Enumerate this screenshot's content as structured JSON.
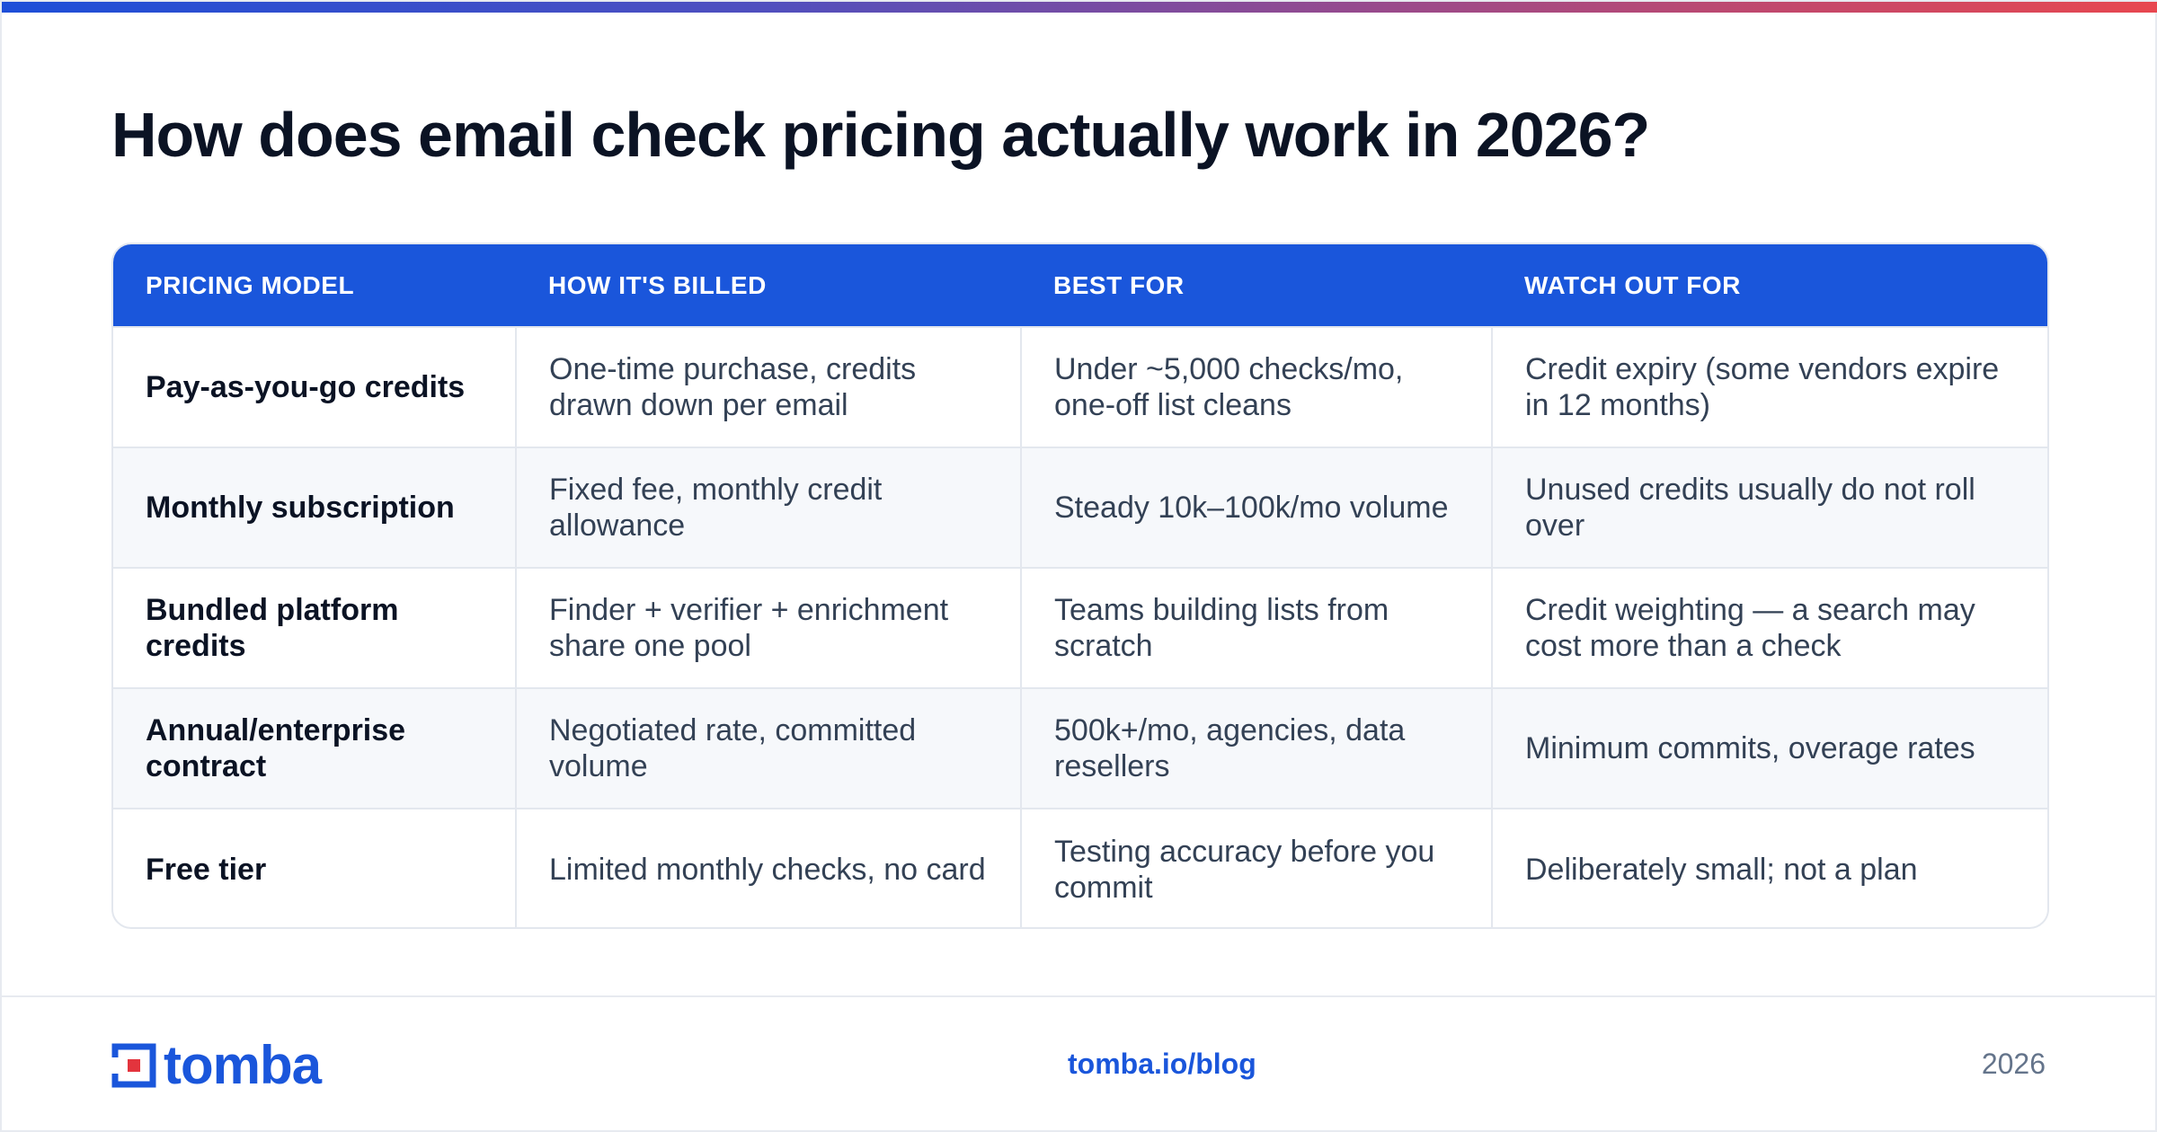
{
  "title": "How does email check pricing actually work in 2026?",
  "table": {
    "headers": [
      "PRICING MODEL",
      "HOW IT'S BILLED",
      "BEST FOR",
      "WATCH OUT FOR"
    ],
    "rows": [
      [
        "Pay-as-you-go credits",
        "One-time purchase, credits drawn down per email",
        "Under ~5,000 checks/mo, one-off list cleans",
        "Credit expiry (some vendors expire in 12 months)"
      ],
      [
        "Monthly subscription",
        "Fixed fee, monthly credit allowance",
        "Steady 10k–100k/mo volume",
        "Unused credits usually do not roll over"
      ],
      [
        "Bundled platform credits",
        "Finder + verifier + enrichment share one pool",
        "Teams building lists from scratch",
        "Credit weighting — a search may cost more than a check"
      ],
      [
        "Annual/enterprise contract",
        "Negotiated rate, committed volume",
        "500k+/mo, agencies, data resellers",
        "Minimum commits, overage rates"
      ],
      [
        "Free tier",
        "Limited monthly checks, no card",
        "Testing accuracy before you commit",
        "Deliberately small; not a plan"
      ]
    ]
  },
  "footer": {
    "logo_text": "tomba",
    "link": "tomba.io/blog",
    "year": "2026"
  },
  "colors": {
    "accent": "#1a56db",
    "logo_red": "#e3343d"
  }
}
